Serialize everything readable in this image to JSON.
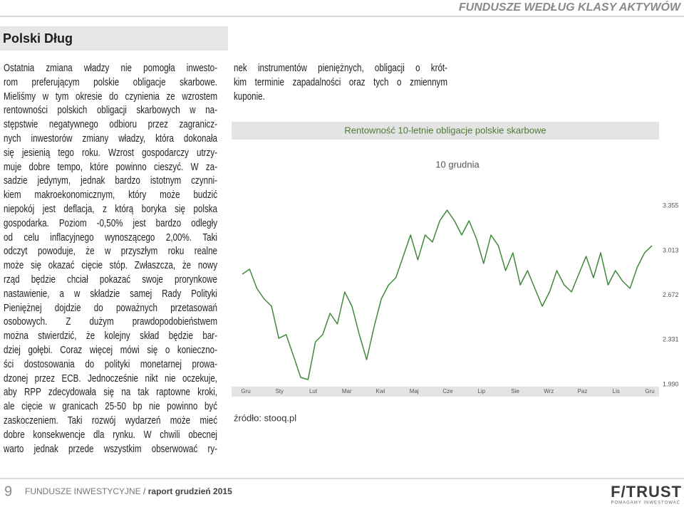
{
  "header": {
    "section": "FUNDUSZE WEDŁUG KLASY AKTYWÓW"
  },
  "article": {
    "title": "Polski Dług",
    "left_lines": [
      "Ostatnia zmiana władzy nie pomogła inwesto-",
      "rom preferującym polskie obligacje skarbowe.",
      "Mieliśmy w tym okresie do czynienia ze wzrostem",
      "rentowności polskich obligacji skarbowych w na-",
      "stępstwie negatywnego odbioru przez zagranicz-",
      "nych inwestorów zmiany władzy, która dokonała",
      "się jesienią tego roku. Wzrost gospodarczy utrzy-",
      "muje dobre tempo, które powinno cieszyć. W za-",
      "sadzie jedynym, jednak bardzo istotnym czynni-",
      "kiem makroekonomicznym, który może budzić",
      "niepokój jest deflacja, z którą boryka się polska",
      "gospodarka. Poziom -0,50% jest bardzo odległy",
      "od celu inflacyjnego wynoszącego 2,00%. Taki",
      "odczyt powoduje, że w przyszłym roku realne",
      "może się okazać cięcie stóp. Zwłaszcza, że nowy",
      "rząd będzie chciał pokazać swoje prorynkowe",
      "nastawienie, a w składzie samej Rady Polityki",
      "Pieniężnej dojdzie do poważnych przetasowań",
      "osobowych. Z dużym prawdopodobieństwem",
      "można stwierdzić, że kolejny skład będzie bar-",
      "dziej gołębi. Coraz więcej mówi się o konieczno-",
      "ści dostosowania do polityki monetarnej prowa-",
      "dzonej przez ECB. Jednocześnie nikt nie oczekuje,",
      "aby RPP zdecydowała się na tak raptowne kroki,",
      "ale cięcie w granicach 25-50 bp nie powinno być",
      "zaskoczeniem. Taki rozwój wydarzeń może mieć",
      "dobre konsekwencje dla rynku. W chwili obecnej",
      "warto jednak przede wszystkim obserwować ry-"
    ],
    "right_lines": [
      "nek instrumentów pieniężnych, obligacji o krót-",
      "kim terminie zapadalności oraz tych o zmiennym",
      "kuponie."
    ]
  },
  "chart_data": {
    "type": "line",
    "title": "Rentowność 10-letnie obligacje polskie skarbowe",
    "subtitle": "10 grudnia",
    "x_labels": [
      "Gru",
      "Sty",
      "Lut",
      "Mar",
      "Kwi",
      "Maj",
      "Cze",
      "Lip",
      "Sie",
      "Wrz",
      "Paz",
      "Lis",
      "Gru"
    ],
    "values": [
      2.833,
      2.871,
      2.724,
      2.643,
      2.588,
      2.343,
      2.371,
      2.208,
      2.044,
      2.028,
      2.316,
      2.371,
      2.534,
      2.452,
      2.697,
      2.588,
      2.371,
      2.18,
      2.425,
      2.643,
      2.751,
      2.806,
      2.969,
      3.132,
      2.942,
      3.132,
      3.078,
      3.241,
      3.322,
      3.241,
      3.132,
      3.241,
      3.105,
      2.914,
      3.132,
      3.05,
      2.86,
      2.996,
      2.751,
      2.86,
      2.724,
      2.588,
      2.697,
      2.86,
      2.751,
      2.697,
      2.833,
      2.969,
      2.806,
      2.996,
      2.751,
      2.86,
      2.779,
      2.724,
      2.887,
      2.996,
      3.05
    ],
    "color": "#3f8a3a",
    "ylim": [
      1.99,
      3.355
    ],
    "yticks": [
      {
        "value": 1.99,
        "label": "1.990"
      },
      2.331,
      2.672,
      3.013,
      3.355
    ],
    "source": "źródło: stooq.pl"
  },
  "footer": {
    "page": "9",
    "publication": "FUNDUSZE INWESTYCYJNE",
    "separator": "/",
    "issue": "raport grudzień 2015",
    "logo": "F/TRUST",
    "tagline": "POMAGAMY INWESTOWAĆ"
  }
}
